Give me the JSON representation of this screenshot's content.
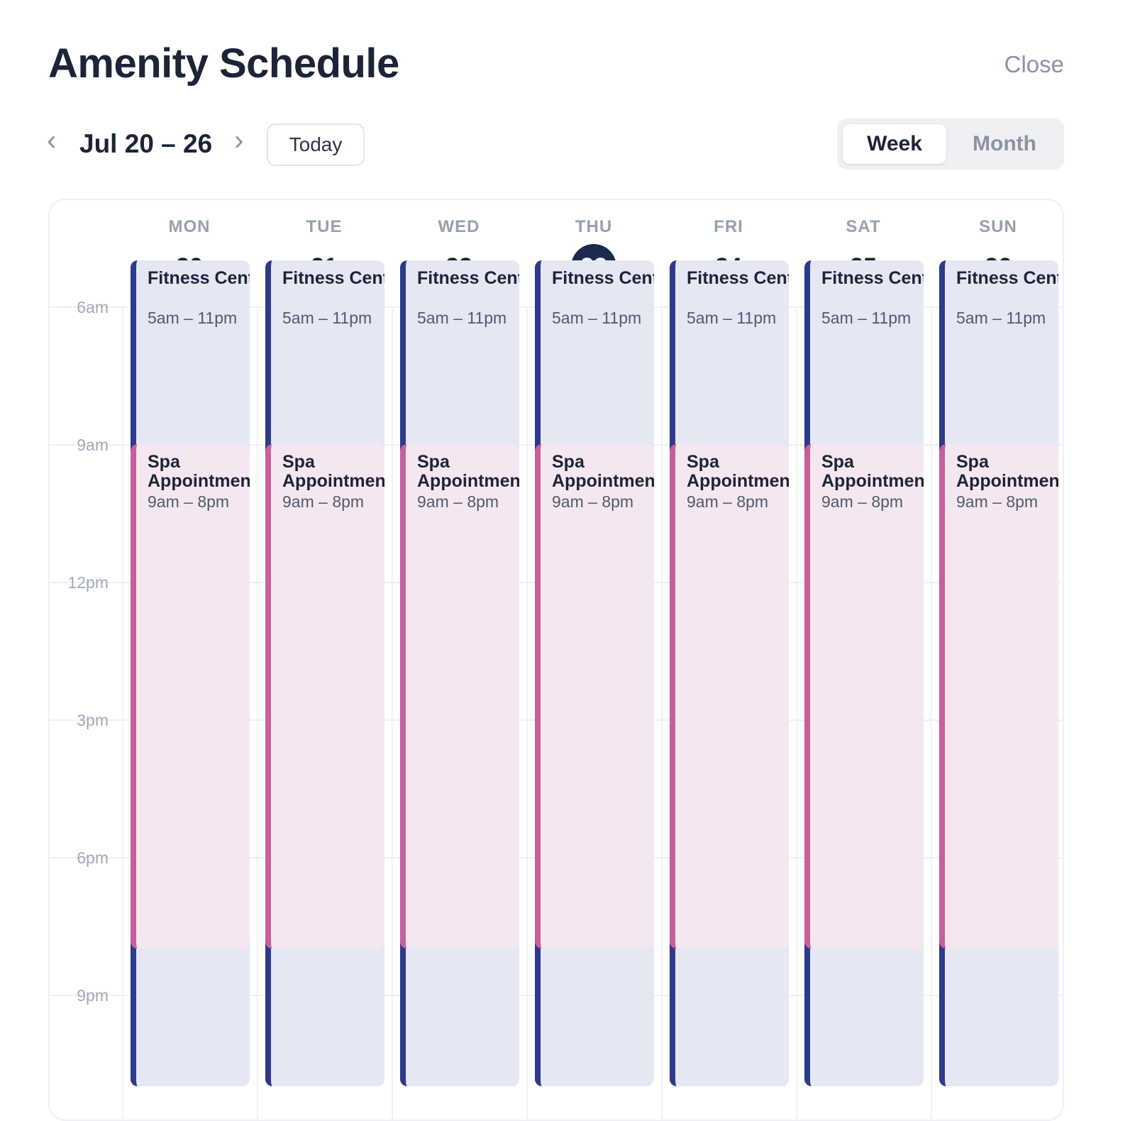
{
  "header": {
    "title": "Amenity Schedule",
    "close_label": "Close"
  },
  "toolbar": {
    "prev_icon": "‹",
    "next_icon": "›",
    "range_label": "Jul 20 – 26",
    "today_label": "Today",
    "views": [
      "Week",
      "Month"
    ],
    "active_view": "Week"
  },
  "time_labels": [
    "6am",
    "9am",
    "12pm",
    "3pm",
    "6pm",
    "9pm"
  ],
  "days": [
    {
      "dow": "MON",
      "date": "20",
      "today": false
    },
    {
      "dow": "TUE",
      "date": "21",
      "today": false
    },
    {
      "dow": "WED",
      "date": "22",
      "today": false
    },
    {
      "dow": "THU",
      "date": "23",
      "today": true
    },
    {
      "dow": "FRI",
      "date": "24",
      "today": false
    },
    {
      "dow": "SAT",
      "date": "25",
      "today": false
    },
    {
      "dow": "SUN",
      "date": "26",
      "today": false
    }
  ],
  "events": [
    {
      "kind": "fitness",
      "name": "Fitness Center",
      "time": "5am – 11pm",
      "start_hour": 5,
      "end_hour": 23
    },
    {
      "kind": "spa",
      "name": "Spa Appointment",
      "time": "9am – 8pm",
      "start_hour": 9,
      "end_hour": 20
    }
  ],
  "colors": {
    "fitness_accent": "#2d3a8c",
    "fitness_bg": "#e5e7f3",
    "spa_accent": "#c7609a",
    "spa_bg": "#f5e7f0",
    "today_circle": "#1b2a4e"
  }
}
